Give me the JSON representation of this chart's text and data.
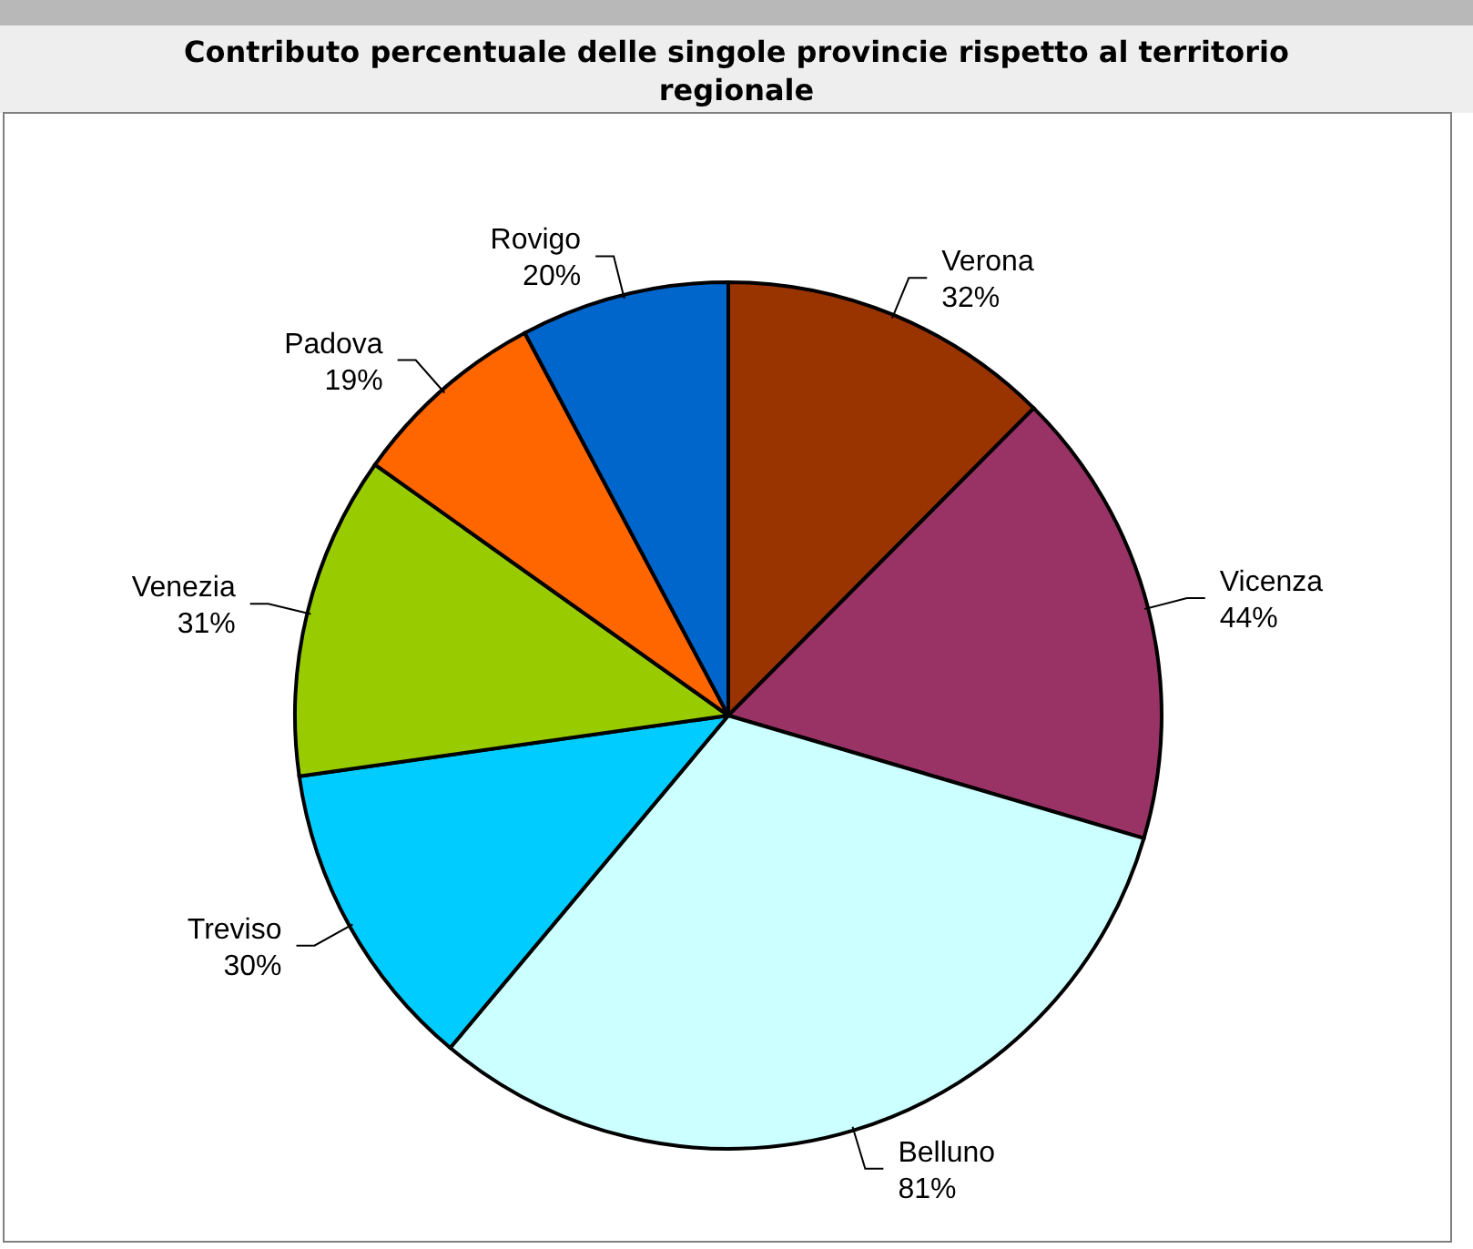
{
  "chart_data": {
    "type": "pie",
    "title": "Contributo percentuale delle singole provincie rispetto al territorio regionale",
    "categories": [
      "Verona",
      "Vicenza",
      "Belluno",
      "Treviso",
      "Venezia",
      "Padova",
      "Rovigo"
    ],
    "values": [
      32,
      44,
      81,
      30,
      31,
      19,
      20
    ],
    "value_labels": [
      "32%",
      "44%",
      "81%",
      "30%",
      "31%",
      "19%",
      "20%"
    ],
    "colors": [
      "#993300",
      "#993366",
      "#ccffff",
      "#00ccff",
      "#99cc00",
      "#ff6600",
      "#0066cc"
    ]
  }
}
